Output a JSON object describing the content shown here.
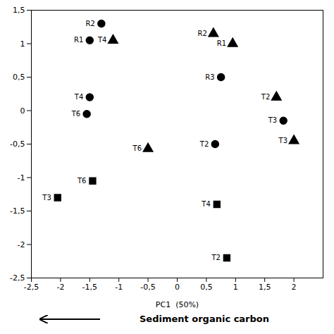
{
  "chart_data": {
    "type": "scatter",
    "color": "#000000",
    "xlabel": "PC1  (50%)",
    "series": [
      {
        "marker": "circle",
        "x": [
          -1.3,
          -1.5,
          -1.5,
          -1.55,
          0.75,
          0.65,
          1.82
        ],
        "y": [
          1.3,
          1.05,
          0.2,
          -0.05,
          0.5,
          -0.5,
          -0.15
        ],
        "labels": [
          "R2",
          "R1",
          "T4",
          "T6",
          "R3",
          "T2",
          "T3"
        ]
      },
      {
        "marker": "triangle",
        "x": [
          -1.1,
          0.62,
          0.95,
          -0.5,
          1.7,
          2.0
        ],
        "y": [
          1.05,
          1.15,
          1.0,
          -0.57,
          0.2,
          -0.45
        ],
        "labels": [
          "T4",
          "R2",
          "R1",
          "T6",
          "T2",
          "T3"
        ]
      },
      {
        "marker": "square",
        "x": [
          -1.45,
          -2.05,
          0.68,
          0.85
        ],
        "y": [
          -1.05,
          -1.3,
          -1.4,
          -2.2
        ],
        "labels": [
          "T6",
          "T3",
          "T4",
          "T2"
        ]
      }
    ],
    "xlim": [
      -2.5,
      2.5
    ],
    "ylim": [
      -2.5,
      1.5
    ],
    "xticks": [
      {
        "value": -2.5,
        "label": "-2,5"
      },
      -2,
      {
        "value": -1.5,
        "label": "-1,5"
      },
      -1,
      {
        "value": -0.5,
        "label": "-0,5"
      },
      0,
      {
        "value": 0.5,
        "label": "0,5"
      },
      1,
      {
        "value": 1.5,
        "label": "1,5"
      },
      2
    ],
    "yticks": [
      {
        "value": -2.5,
        "label": "-2,5"
      },
      -2,
      {
        "value": -1.5,
        "label": "-1,5"
      },
      -1,
      {
        "value": -0.5,
        "label": "-0,5"
      },
      0,
      {
        "value": 0.5,
        "label": "0,5"
      },
      1,
      {
        "value": 1.5,
        "label": "1,5"
      }
    ],
    "grid": false,
    "annotations": [
      {
        "text": "Sediment organic carbon"
      }
    ]
  }
}
